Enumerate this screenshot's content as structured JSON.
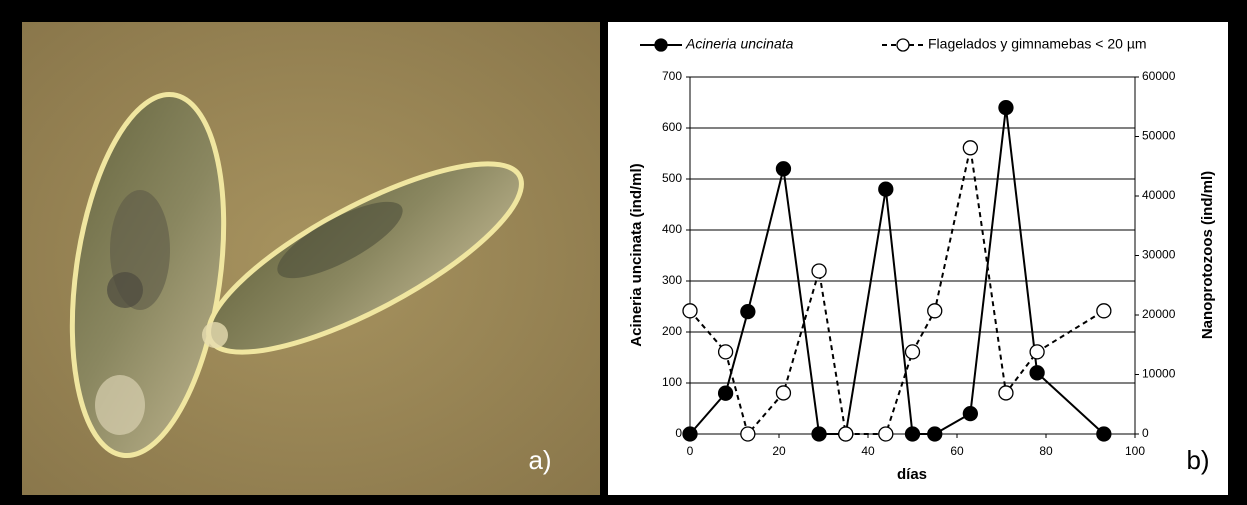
{
  "chart_data": {
    "type": "line",
    "annotations": [
      "a)",
      "b)"
    ],
    "xlabel": "días",
    "ylabel": "Acineria uncinata (ind/ml)",
    "y2label": "Nanoprotozoos (ind/ml)",
    "x": [
      0,
      8,
      13,
      21,
      29,
      35,
      44,
      50,
      55,
      63,
      71,
      78,
      93
    ],
    "xlim": [
      0,
      100
    ],
    "xticks": [
      0,
      20,
      40,
      60,
      80,
      100
    ],
    "ylim": [
      0,
      700
    ],
    "yticks": [
      0,
      100,
      200,
      300,
      400,
      500,
      600,
      700
    ],
    "y2lim": [
      0,
      60000
    ],
    "y2ticks": [
      0,
      10000,
      20000,
      30000,
      40000,
      50000,
      60000
    ],
    "grid": true,
    "legend": "top",
    "series": [
      {
        "name": "Acineria uncinata",
        "color": "#000000",
        "marker": "filled",
        "dashed": false,
        "values": [
          0,
          80,
          240,
          520,
          0,
          0,
          480,
          0,
          0,
          40,
          640,
          120,
          0
        ]
      },
      {
        "name": "Flagelados y gimnamebas < 20 µm",
        "color": "#000000",
        "marker": "open",
        "dashed": true,
        "axis": "y2",
        "values": [
          20700,
          13800,
          0,
          6900,
          27400,
          0,
          0,
          13800,
          20700,
          48100,
          6900,
          13800,
          20700
        ]
      }
    ]
  }
}
